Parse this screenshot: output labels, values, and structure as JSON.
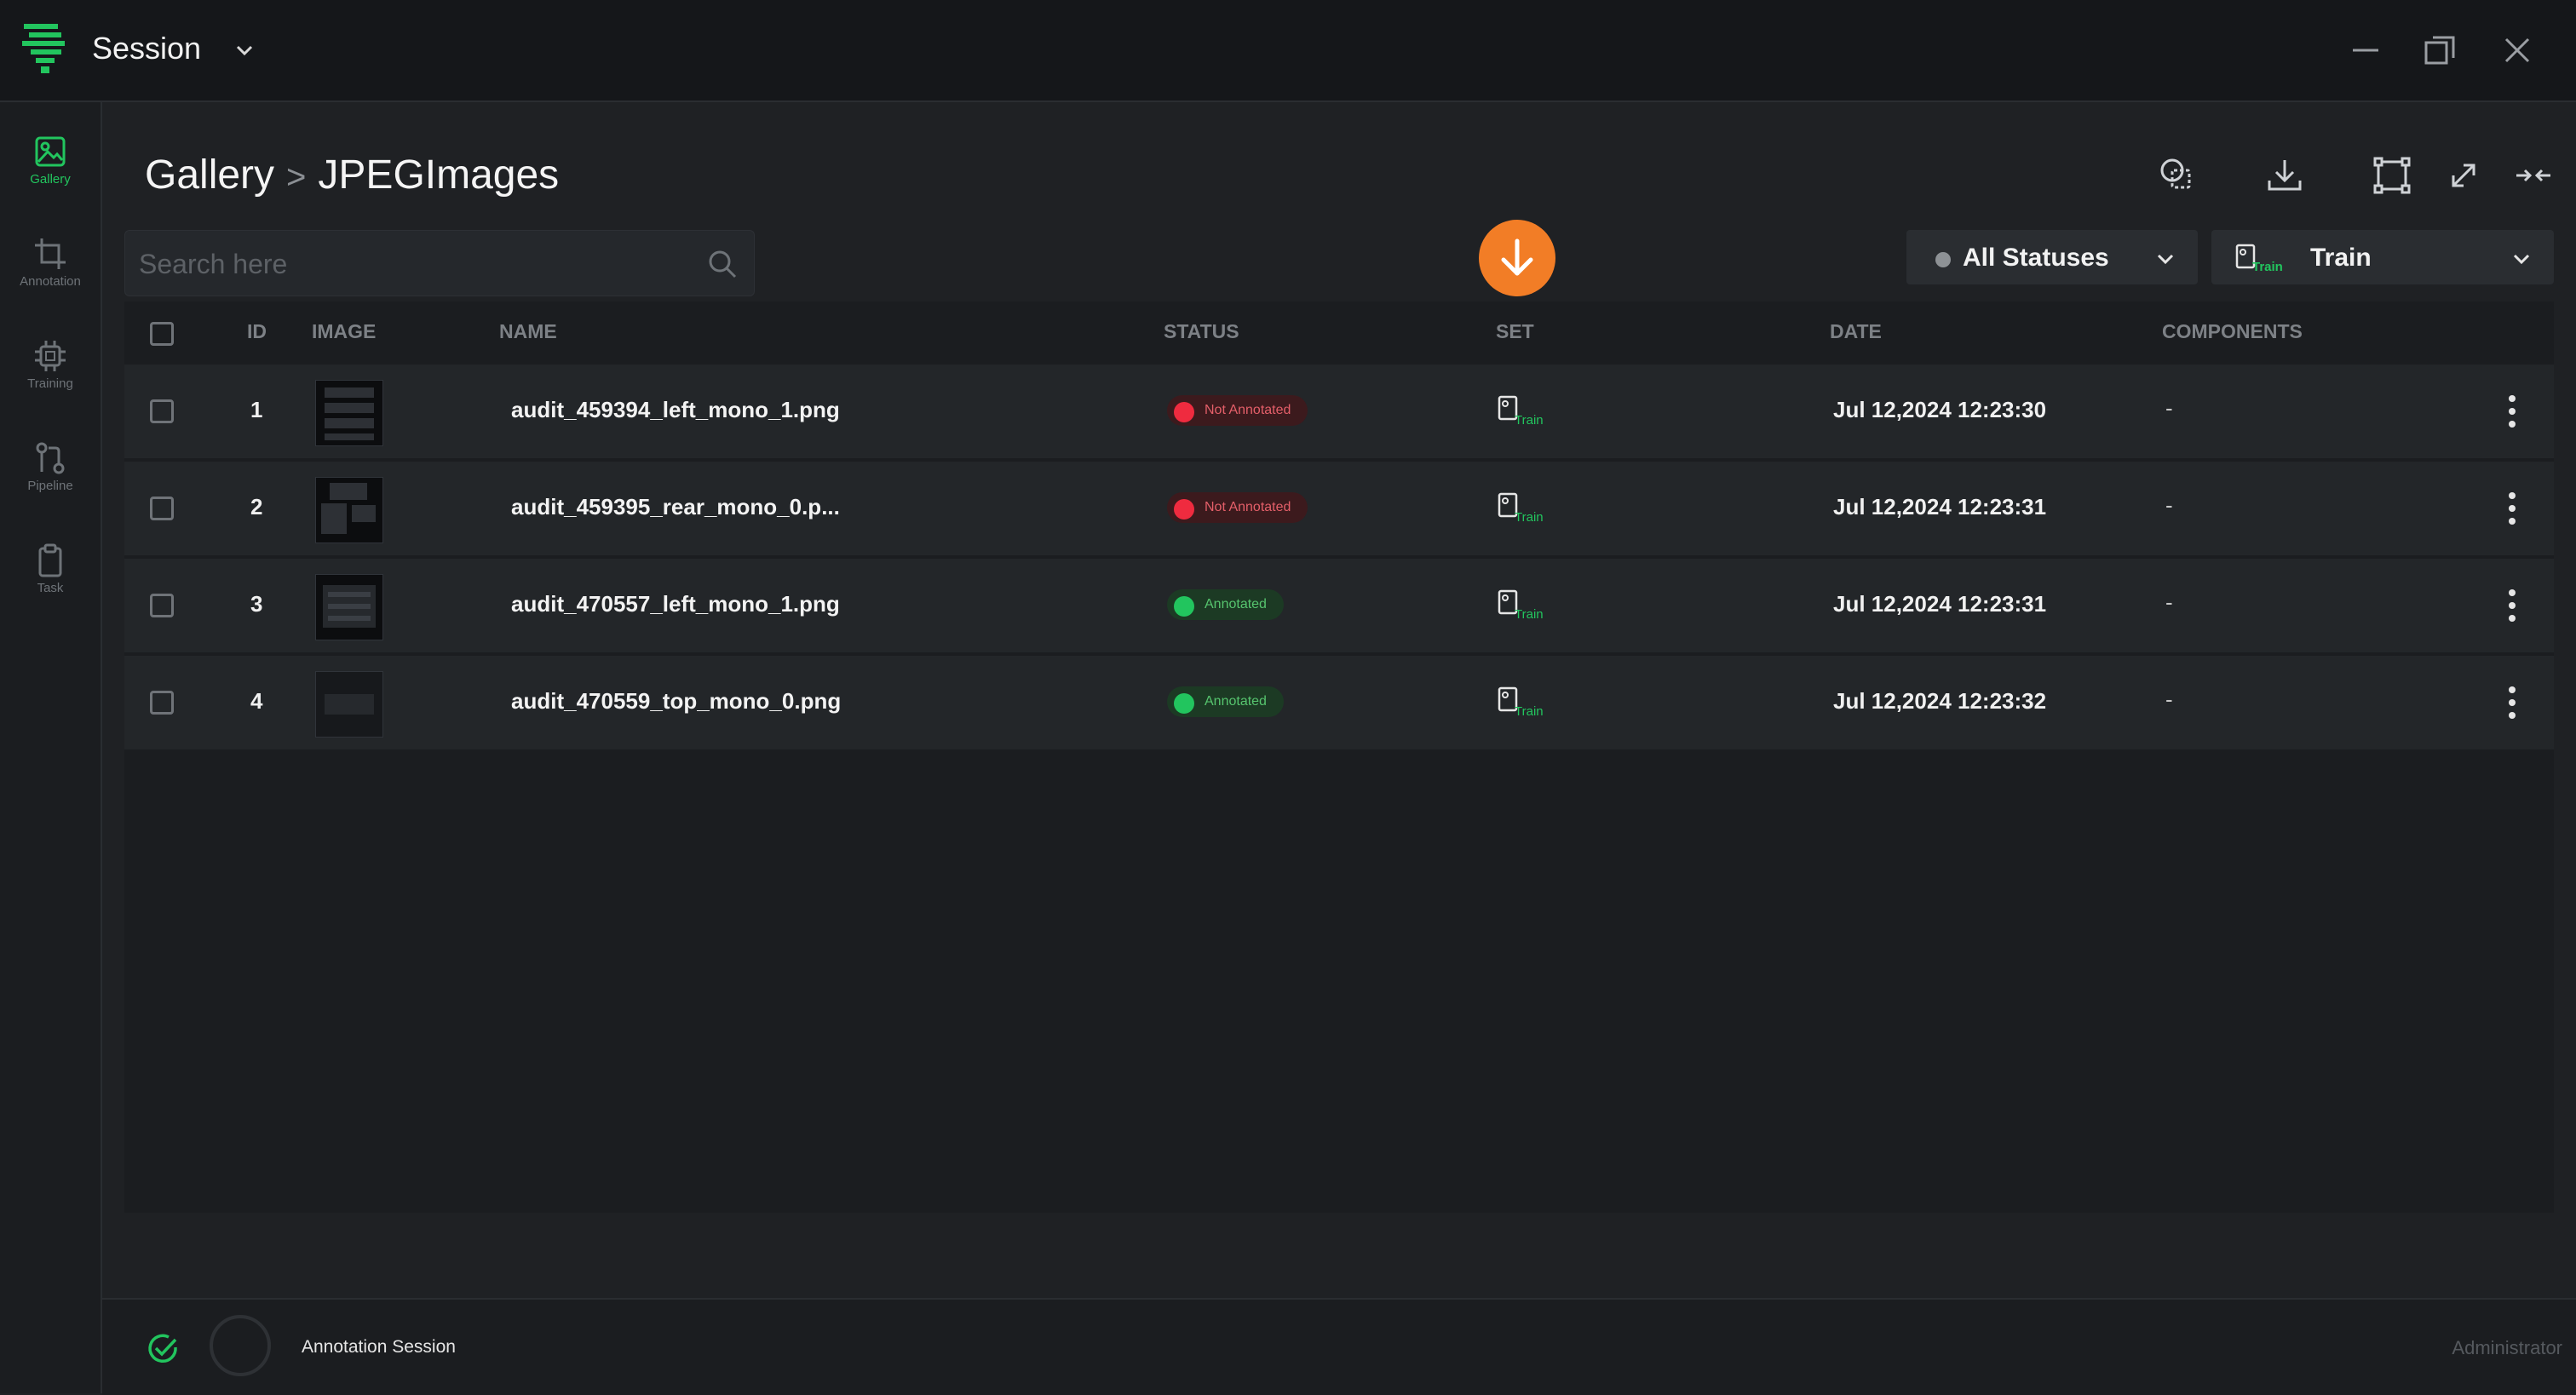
{
  "window": {
    "title": "Session"
  },
  "rail": {
    "items": [
      {
        "label": "Gallery",
        "icon": "gallery-icon",
        "active": true
      },
      {
        "label": "Annotation",
        "icon": "crop-icon"
      },
      {
        "label": "Training",
        "icon": "chip-icon"
      },
      {
        "label": "Pipeline",
        "icon": "pipeline-icon"
      },
      {
        "label": "Task",
        "icon": "clipboard-icon"
      }
    ]
  },
  "header": {
    "crumbs": [
      "Gallery",
      "JPEGImages"
    ],
    "separator": ">"
  },
  "search": {
    "placeholder": "Search here",
    "value": ""
  },
  "filters": {
    "status": {
      "selected": "All Statuses"
    },
    "set": {
      "selected": "Train",
      "icon_label": "Train"
    }
  },
  "table": {
    "headers": [
      "ID",
      "IMAGE",
      "NAME",
      "STATUS",
      "SET",
      "DATE",
      "COMPONENTS"
    ],
    "rows": [
      {
        "id": "1",
        "name": "audit_459394_left_mono_1.png",
        "status": "Not Annotated",
        "status_kind": "negative",
        "set": "Train",
        "date": "Jul 12,2024 12:23:30",
        "components": "-"
      },
      {
        "id": "2",
        "name": "audit_459395_rear_mono_0.p...",
        "status": "Not Annotated",
        "status_kind": "negative",
        "set": "Train",
        "date": "Jul 12,2024 12:23:31",
        "components": "-"
      },
      {
        "id": "3",
        "name": "audit_470557_left_mono_1.png",
        "status": "Annotated",
        "status_kind": "positive",
        "set": "Train",
        "date": "Jul 12,2024 12:23:31",
        "components": "-"
      },
      {
        "id": "4",
        "name": "audit_470559_top_mono_0.png",
        "status": "Annotated",
        "status_kind": "positive",
        "set": "Train",
        "date": "Jul 12,2024 12:23:32",
        "components": "-"
      }
    ]
  },
  "footer": {
    "session_label": "Annotation Session",
    "user": "Administrator"
  },
  "colors": {
    "accent": "#22c55e",
    "fab": "#f27d26",
    "negative": "#ef2b3f",
    "positive": "#22c55e",
    "background": "#1f2124",
    "panel": "#1b1d20"
  }
}
